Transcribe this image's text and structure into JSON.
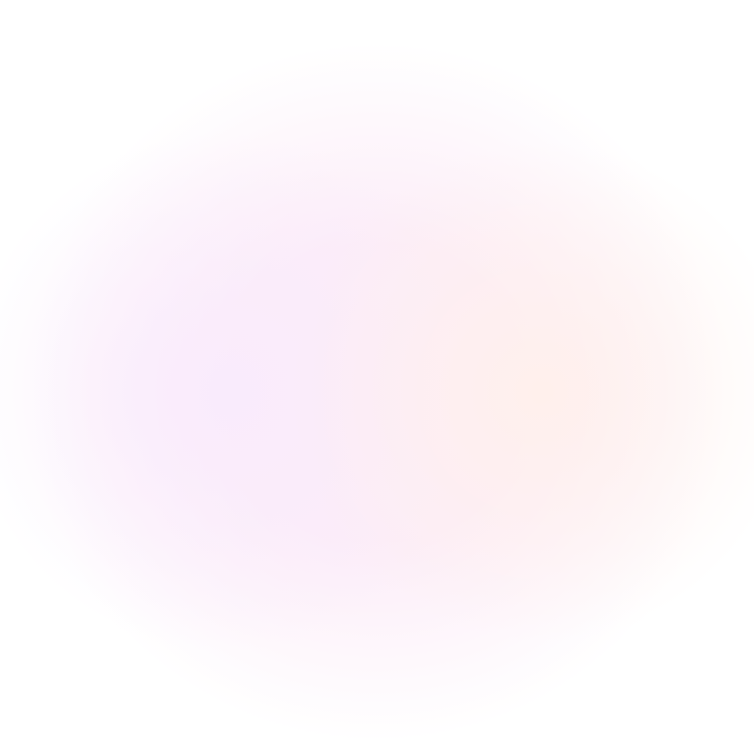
{
  "background": {
    "base_color": "#ffffff",
    "glow_left_color": "#fbf0fc",
    "glow_center_color": "#fdf2f9",
    "glow_right_color": "#fff6f3"
  }
}
